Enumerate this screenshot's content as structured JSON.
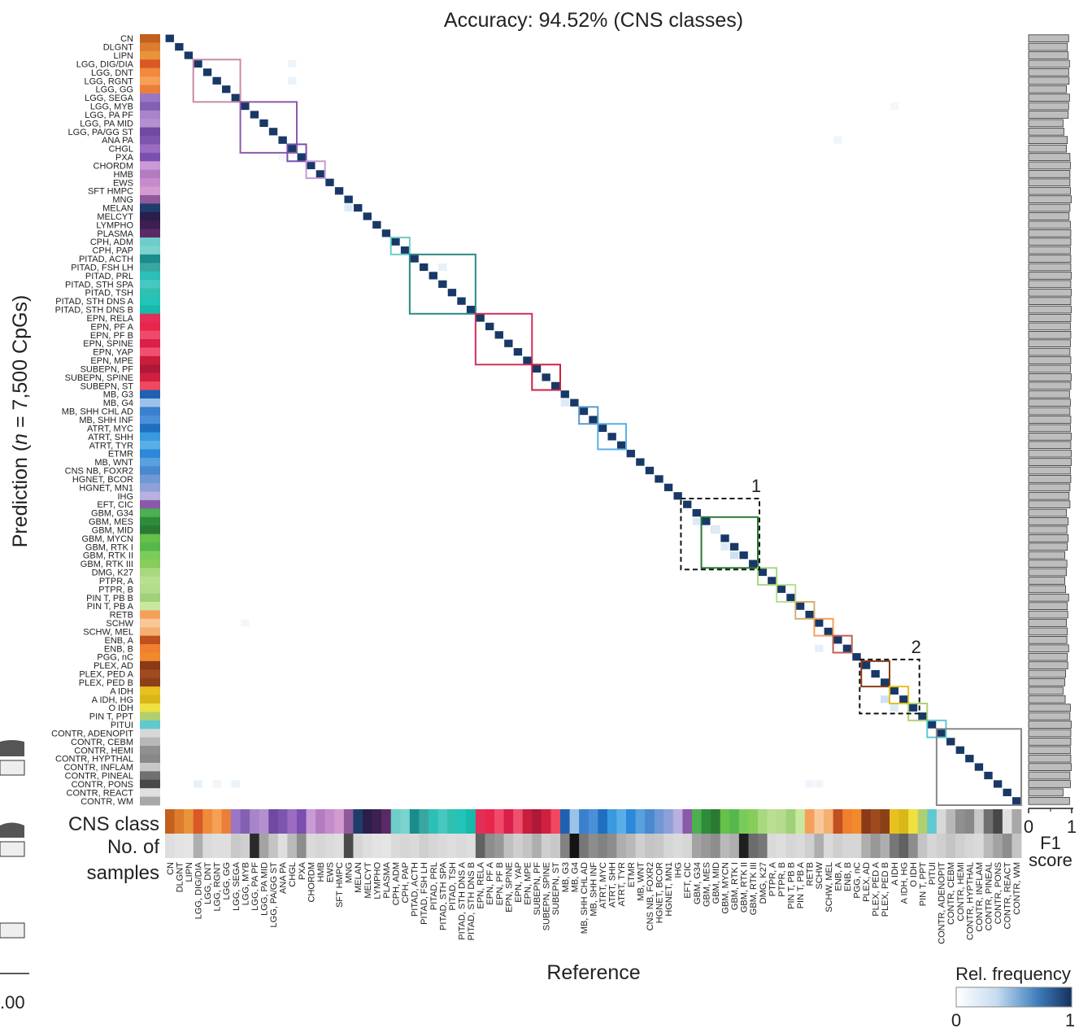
{
  "chart_data": {
    "type": "heatmap",
    "title": "Accuracy: 94.52% (CNS classes)",
    "xlabel": "Reference",
    "ylabel_parts": [
      "Prediction (",
      "n",
      " = 7,500 CpGs)"
    ],
    "classes": [
      "CN",
      "DLGNT",
      "LIPN",
      "LGG, DIG/DIA",
      "LGG, DNT",
      "LGG, RGNT",
      "LGG, GG",
      "LGG, SEGA",
      "LGG, MYB",
      "LGG, PA PF",
      "LGG, PA MID",
      "LGG, PA/GG ST",
      "ANA PA",
      "CHGL",
      "PXA",
      "CHORDM",
      "HMB",
      "EWS",
      "SFT HMPC",
      "MNG",
      "MELAN",
      "MELCYT",
      "LYMPHO",
      "PLASMA",
      "CPH, ADM",
      "CPH, PAP",
      "PITAD, ACTH",
      "PITAD, FSH LH",
      "PITAD, PRL",
      "PITAD, STH SPA",
      "PITAD, TSH",
      "PITAD, STH DNS A",
      "PITAD, STH DNS B",
      "EPN, RELA",
      "EPN, PF A",
      "EPN, PF B",
      "EPN, SPINE",
      "EPN, YAP",
      "EPN, MPE",
      "SUBEPN, PF",
      "SUBEPN, SPINE",
      "SUBEPN, ST",
      "MB, G3",
      "MB, G4",
      "MB, SHH CHL AD",
      "MB, SHH INF",
      "ATRT, MYC",
      "ATRT, SHH",
      "ATRT, TYR",
      "ETMR",
      "MB, WNT",
      "CNS NB, FOXR2",
      "HGNET, BCOR",
      "HGNET, MN1",
      "IHG",
      "EFT, CIC",
      "GBM, G34",
      "GBM, MES",
      "GBM, MID",
      "GBM, MYCN",
      "GBM, RTK I",
      "GBM, RTK II",
      "GBM, RTK III",
      "DMG, K27",
      "PTPR, A",
      "PTPR, B",
      "PIN T,  PB B",
      "PIN T,  PB A",
      "RETB",
      "SCHW",
      "SCHW, MEL",
      "ENB, A",
      "ENB, B",
      "PGG, nC",
      "PLEX, AD",
      "PLEX, PED A",
      "PLEX, PED B",
      "A IDH",
      "A IDH, HG",
      "O IDH",
      "PIN T, PPT",
      "PITUI",
      "CONTR, ADENOPIT",
      "CONTR, CEBM",
      "CONTR, HEMI",
      "CONTR, HYPTHAL",
      "CONTR, INFLAM",
      "CONTR, PINEAL",
      "CONTR, PONS",
      "CONTR, REACT",
      "CONTR, WM"
    ],
    "class_colors": [
      "#c2601e",
      "#dd7c2e",
      "#e8943a",
      "#d95926",
      "#f08a3c",
      "#f5a055",
      "#ea7f3a",
      "#9a77c4",
      "#8460b3",
      "#a884cb",
      "#b391d0",
      "#6f4aa0",
      "#7d55ad",
      "#9b6cc2",
      "#7a4fae",
      "#c99ad6",
      "#b47cc0",
      "#c48ccb",
      "#d49bd1",
      "#8f5a9a",
      "#1f3d6b",
      "#2a1f4a",
      "#3e1f52",
      "#5a2a66",
      "#6ecdc8",
      "#7ad3cf",
      "#1a8c8c",
      "#3aa6a0",
      "#2cbfb8",
      "#47c7bf",
      "#30c0b0",
      "#22c4b8",
      "#18b9ad",
      "#e0305a",
      "#e8254c",
      "#f04a6a",
      "#d91f4a",
      "#f05070",
      "#c81e3c",
      "#b0183a",
      "#d02040",
      "#f04860",
      "#2060b0",
      "#9cc2e8",
      "#3b7fcf",
      "#4a8fd8",
      "#1f6fbf",
      "#3a9ae0",
      "#5aaee8",
      "#2c88d8",
      "#58a0de",
      "#4a88d0",
      "#6f98d4",
      "#8ea0d8",
      "#b8b0e0",
      "#8a5aa8",
      "#4caf50",
      "#2e8b3a",
      "#2a7a34",
      "#66c04a",
      "#56b84a",
      "#7acc5a",
      "#88cc5a",
      "#a8d880",
      "#b8e090",
      "#b4dc8c",
      "#a0d078",
      "#c8e8a0",
      "#f4a05a",
      "#f8c89a",
      "#f4b070",
      "#c05020",
      "#f08030",
      "#f08a2c",
      "#8a3a18",
      "#a04a20",
      "#8c4018",
      "#e8c020",
      "#d8b818",
      "#f0e040",
      "#b0d070",
      "#60c8d0",
      "#d8d8d8",
      "#b8b8b8",
      "#909090",
      "#888888",
      "#c8c8c8",
      "#707070",
      "#484848",
      "#e0e0e0",
      "#a8a8a8"
    ],
    "sample_counts_relative": [
      0.08,
      0.06,
      0.05,
      0.3,
      0.1,
      0.08,
      0.08,
      0.18,
      0.15,
      0.9,
      0.35,
      0.2,
      0.08,
      0.25,
      0.45,
      0.1,
      0.12,
      0.1,
      0.08,
      0.75,
      0.12,
      0.08,
      0.06,
      0.05,
      0.1,
      0.12,
      0.1,
      0.15,
      0.12,
      0.1,
      0.08,
      0.1,
      0.08,
      0.65,
      0.45,
      0.4,
      0.22,
      0.15,
      0.2,
      0.3,
      0.15,
      0.18,
      0.5,
      1.0,
      0.55,
      0.45,
      0.5,
      0.45,
      0.3,
      0.25,
      0.15,
      0.2,
      0.18,
      0.12,
      0.1,
      0.12,
      0.35,
      0.4,
      0.45,
      0.25,
      0.3,
      0.95,
      0.6,
      0.55,
      0.1,
      0.08,
      0.12,
      0.1,
      0.15,
      0.3,
      0.1,
      0.15,
      0.12,
      0.12,
      0.3,
      0.4,
      0.3,
      0.55,
      0.65,
      0.45,
      0.2,
      0.12,
      0.15,
      0.2,
      0.15,
      0.12,
      0.1,
      0.25,
      0.35,
      0.45,
      0.2
    ],
    "off_diagonal": [
      {
        "row": 3,
        "col": 13,
        "value": 0.1
      },
      {
        "row": 5,
        "col": 13,
        "value": 0.12
      },
      {
        "row": 8,
        "col": 77,
        "value": 0.08
      },
      {
        "row": 11,
        "col": 98,
        "value": 0.06
      },
      {
        "row": 12,
        "col": 71,
        "value": 0.1
      },
      {
        "row": 14,
        "col": 12,
        "value": 0.08
      },
      {
        "row": 20,
        "col": 19,
        "value": 0.2
      },
      {
        "row": 27,
        "col": 29,
        "value": 0.15
      },
      {
        "row": 43,
        "col": 42,
        "value": 0.2
      },
      {
        "row": 57,
        "col": 56,
        "value": 0.2
      },
      {
        "row": 58,
        "col": 58,
        "value": 0.2
      },
      {
        "row": 60,
        "col": 59,
        "value": 0.2
      },
      {
        "row": 61,
        "col": 60,
        "value": 0.3
      },
      {
        "row": 69,
        "col": 8,
        "value": 0.08
      },
      {
        "row": 72,
        "col": 69,
        "value": 0.15
      },
      {
        "row": 78,
        "col": 76,
        "value": 0.3
      },
      {
        "row": 79,
        "col": 77,
        "value": 0.2
      },
      {
        "row": 88,
        "col": 3,
        "value": 0.15
      },
      {
        "row": 88,
        "col": 5,
        "value": 0.1
      },
      {
        "row": 88,
        "col": 7,
        "value": 0.12
      },
      {
        "row": 88,
        "col": 68,
        "value": 0.1
      },
      {
        "row": 88,
        "col": 69,
        "value": 0.1
      }
    ],
    "group_boxes": [
      {
        "start": 3,
        "end": 7,
        "color": "#c98aa8"
      },
      {
        "start": 8,
        "end": 13,
        "color": "#8d5aa8"
      },
      {
        "start": 13,
        "end": 14,
        "color": "#7a4fae"
      },
      {
        "start": 15,
        "end": 16,
        "color": "#c99ad6"
      },
      {
        "start": 24,
        "end": 25,
        "color": "#6ecdc8"
      },
      {
        "start": 26,
        "end": 32,
        "color": "#2a8a86"
      },
      {
        "start": 33,
        "end": 38,
        "color": "#d0305a"
      },
      {
        "start": 39,
        "end": 41,
        "color": "#d02040"
      },
      {
        "start": 44,
        "end": 45,
        "color": "#5a9ad0"
      },
      {
        "start": 46,
        "end": 48,
        "color": "#5aaee8"
      },
      {
        "start": 57,
        "end": 62,
        "color": "#2a7a34"
      },
      {
        "start": 63,
        "end": 64,
        "color": "#a8d880"
      },
      {
        "start": 65,
        "end": 66,
        "color": "#b8e090"
      },
      {
        "start": 67,
        "end": 68,
        "color": "#d4b070"
      },
      {
        "start": 69,
        "end": 70,
        "color": "#f4a05a"
      },
      {
        "start": 71,
        "end": 72,
        "color": "#c06050"
      },
      {
        "start": 74,
        "end": 76,
        "color": "#8a3a18"
      },
      {
        "start": 77,
        "end": 78,
        "color": "#e8c020"
      },
      {
        "start": 79,
        "end": 80,
        "color": "#b0d070"
      },
      {
        "start": 81,
        "end": 82,
        "color": "#60c8d0"
      },
      {
        "start": 82,
        "end": 90,
        "color": "#888888"
      }
    ],
    "dashed_boxes": [
      {
        "start": 55,
        "end": 62,
        "label": "1"
      },
      {
        "start": 74,
        "end": 79,
        "label": "2"
      }
    ],
    "f1_scores": [
      0.93,
      0.9,
      0.92,
      0.95,
      0.93,
      0.94,
      0.88,
      0.95,
      0.93,
      0.92,
      0.8,
      0.82,
      0.9,
      0.88,
      0.96,
      0.97,
      0.96,
      0.96,
      0.97,
      0.99,
      0.96,
      0.94,
      0.97,
      0.98,
      0.98,
      0.97,
      0.98,
      0.98,
      0.99,
      0.98,
      0.99,
      0.98,
      0.99,
      0.98,
      0.97,
      0.98,
      0.97,
      0.96,
      0.98,
      0.97,
      0.99,
      0.98,
      0.95,
      0.97,
      0.96,
      0.98,
      0.97,
      0.99,
      0.98,
      0.99,
      0.99,
      0.97,
      0.98,
      0.96,
      0.94,
      0.96,
      0.88,
      0.92,
      0.89,
      0.92,
      0.9,
      0.84,
      0.89,
      0.88,
      0.84,
      0.86,
      0.93,
      0.9,
      0.91,
      0.88,
      0.9,
      0.89,
      0.93,
      0.9,
      0.91,
      0.86,
      0.84,
      0.8,
      0.85,
      0.97,
      0.96,
      0.99,
      0.98,
      0.98,
      0.97,
      0.98,
      0.99,
      0.96,
      0.97,
      0.8,
      0.95
    ],
    "f1_xlabel_line1": "F1",
    "f1_xlabel_line2": "score",
    "f1_ticks": [
      "0",
      "1"
    ],
    "side_label_cns": "CNS class",
    "side_label_samples_1": "No. of",
    "side_label_samples_2": "samples",
    "colorbar_title": "Rel. frequency",
    "colorbar_ticks": [
      "0",
      "1"
    ],
    "left_edge_tick": ".00"
  }
}
